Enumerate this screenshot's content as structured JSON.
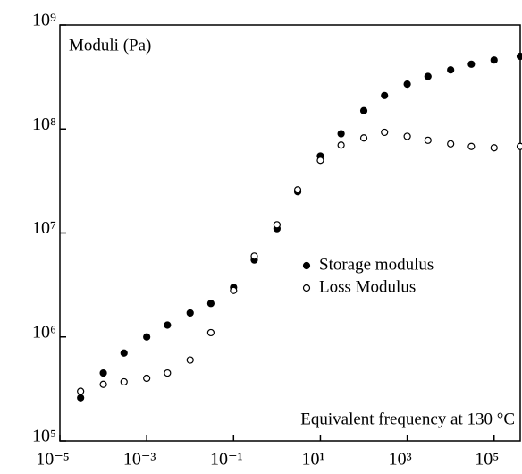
{
  "chart_data": {
    "type": "scatter",
    "y_axis_label": "Moduli (Pa)",
    "annotation": "Equivalent frequency at 130 °C",
    "x_log": true,
    "y_log": true,
    "x": [
      3e-05,
      0.0001,
      0.0003,
      0.001,
      0.003,
      0.01,
      0.03,
      0.1,
      0.3,
      1,
      3,
      10,
      30,
      100,
      300,
      1000,
      3000,
      10000,
      30000,
      100000,
      400000
    ],
    "series": [
      {
        "name": "Storage modulus",
        "color": "#000000",
        "fill": "#000000",
        "values": [
          260000,
          450000,
          700000,
          1000000,
          1300000,
          1700000,
          2100000,
          3000000,
          5500000,
          11000000,
          25000000,
          55000000,
          90000000,
          150000000,
          210000000,
          270000000,
          320000000,
          370000000,
          420000000,
          460000000,
          500000000
        ]
      },
      {
        "name": "Loss Modulus",
        "color": "#000000",
        "fill": "#ffffff",
        "values": [
          300000,
          350000,
          370000,
          400000,
          450000,
          600000,
          1100000,
          2800000,
          6000000,
          12000000,
          26000000,
          50000000,
          70000000,
          82000000,
          93000000,
          85000000,
          78000000,
          72000000,
          68000000,
          66000000,
          68000000
        ]
      }
    ],
    "xlim": [
      1e-05,
      400000
    ],
    "ylim": [
      100000,
      1000000000
    ],
    "xticks": [
      {
        "value": 1e-05,
        "label": "10⁻⁵"
      },
      {
        "value": 0.001,
        "label": "10⁻³"
      },
      {
        "value": 0.1,
        "label": "10⁻¹"
      },
      {
        "value": 10,
        "label": "10¹"
      },
      {
        "value": 1000,
        "label": "10³"
      },
      {
        "value": 100000,
        "label": "10⁵"
      }
    ],
    "yticks": [
      {
        "value": 100000,
        "label": "10⁵"
      },
      {
        "value": 1000000,
        "label": "10⁶"
      },
      {
        "value": 10000000,
        "label": "10⁷"
      },
      {
        "value": 100000000,
        "label": "10⁸"
      },
      {
        "value": 1000000000,
        "label": "10⁹"
      }
    ],
    "grid": false
  }
}
